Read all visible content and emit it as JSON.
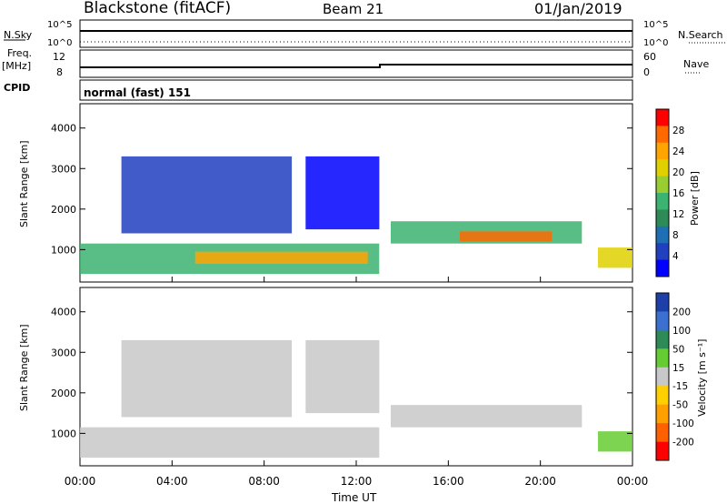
{
  "header": {
    "station": "Blackstone (fitACF)",
    "beam": "Beam 21",
    "date": "01/Jan/2019"
  },
  "status_panels": {
    "nsky_label": "N.Sky",
    "nsearch_label": "N.Search",
    "freq_label_line1": "Freq.",
    "freq_label_line2": "[MHz]",
    "nave_label": "Nave",
    "cpid_label": "CPID",
    "cpid_value": "normal (fast) 151",
    "noise_ticks": [
      "10^5",
      "10^0"
    ],
    "freq_ticks": [
      "12",
      "8"
    ],
    "nave_ticks": [
      "60",
      "0"
    ]
  },
  "chart_data": [
    {
      "type": "heatmap",
      "name": "power",
      "xlabel": "Time UT",
      "ylabel": "Slant Range [km]",
      "x_ticks": [
        "00:00",
        "04:00",
        "08:00",
        "12:00",
        "16:00",
        "20:00",
        "00:00"
      ],
      "y_ticks": [
        "1000",
        "2000",
        "3000",
        "4000"
      ],
      "ylim": [
        200,
        4600
      ],
      "colorbar_label": "Power [dB]",
      "colorbar_ticks": [
        "28",
        "24",
        "20",
        "16",
        "12",
        "8",
        "4"
      ],
      "colorbar_colors": [
        "#ff0000",
        "#ff6a00",
        "#ffa500",
        "#e0d000",
        "#9acd32",
        "#3cb371",
        "#2e8b57",
        "#1f6fb5",
        "#2040c0",
        "#0000ff"
      ],
      "regions": [
        {
          "t0": 0.0,
          "t1": 13.0,
          "r0": 400,
          "r1": 1150,
          "level": 14
        },
        {
          "t0": 5.0,
          "t1": 12.5,
          "r0": 650,
          "r1": 950,
          "level": 22
        },
        {
          "t0": 13.5,
          "t1": 21.8,
          "r0": 1150,
          "r1": 1700,
          "level": 16
        },
        {
          "t0": 16.5,
          "t1": 20.5,
          "r0": 1200,
          "r1": 1450,
          "level": 24
        },
        {
          "t0": 22.5,
          "t1": 24.0,
          "r0": 550,
          "r1": 1050,
          "level": 20
        },
        {
          "t0": 1.8,
          "t1": 9.2,
          "r0": 1400,
          "r1": 3300,
          "level": 8
        },
        {
          "t0": 9.8,
          "t1": 13.0,
          "r0": 1500,
          "r1": 3300,
          "level": 6
        }
      ]
    },
    {
      "type": "heatmap",
      "name": "velocity",
      "xlabel": "Time UT",
      "ylabel": "Slant Range [km]",
      "x_ticks": [
        "00:00",
        "04:00",
        "08:00",
        "12:00",
        "16:00",
        "20:00",
        "00:00"
      ],
      "y_ticks": [
        "1000",
        "2000",
        "3000",
        "4000"
      ],
      "ylim": [
        200,
        4600
      ],
      "colorbar_label": "Velocity [m s⁻¹]",
      "colorbar_ticks": [
        "200",
        "100",
        "50",
        "15",
        "-15",
        "-50",
        "-100",
        "-200"
      ],
      "colorbar_colors": [
        "#1c3fa8",
        "#3b6fd0",
        "#2e8b57",
        "#66cc33",
        "#c8c8c8",
        "#ffd000",
        "#ffa000",
        "#ff6000",
        "#ff0000"
      ],
      "regions": [
        {
          "t0": 0.0,
          "t1": 13.0,
          "r0": 400,
          "r1": 1150,
          "level": 0
        },
        {
          "t0": 13.5,
          "t1": 21.8,
          "r0": 1150,
          "r1": 1700,
          "level": 0
        },
        {
          "t0": 22.5,
          "t1": 24.0,
          "r0": 550,
          "r1": 1050,
          "level": 30
        },
        {
          "t0": 1.8,
          "t1": 9.2,
          "r0": 1400,
          "r1": 3300,
          "level": 0
        },
        {
          "t0": 9.8,
          "t1": 13.0,
          "r0": 1500,
          "r1": 3300,
          "level": 0
        }
      ]
    }
  ]
}
